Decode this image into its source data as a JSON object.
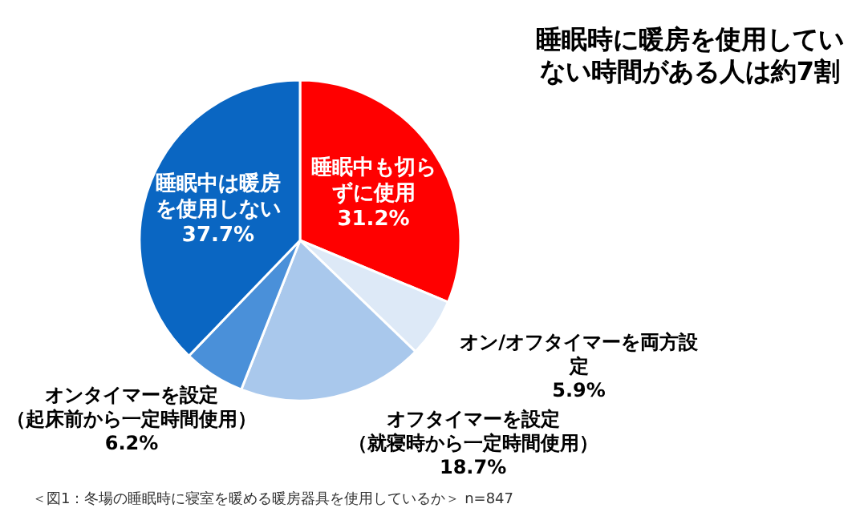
{
  "chart_data": {
    "type": "pie",
    "title": "睡眠時に暖房を使用していない時間がある人は約7割",
    "categories": [
      "睡眠中も切らずに使用",
      "オン/オフタイマーを両方設定",
      "オフタイマーを設定（就寝時から一定時間使用）",
      "オンタイマーを設定（起床前から一定時間使用）",
      "睡眠中は暖房を使用しない"
    ],
    "values": [
      31.2,
      5.9,
      18.7,
      6.2,
      37.7
    ],
    "value_labels": [
      "31.2%",
      "5.9%",
      "18.7%",
      "6.2%",
      "37.7%"
    ],
    "colors": [
      "#ff0000",
      "#dde9f7",
      "#a9c8ec",
      "#4a90d9",
      "#0a66c2"
    ],
    "annotations": [
      "＜図1：冬場の睡眠時に寝室を暖める暖房器具を使用しているか＞ n=847"
    ]
  }
}
